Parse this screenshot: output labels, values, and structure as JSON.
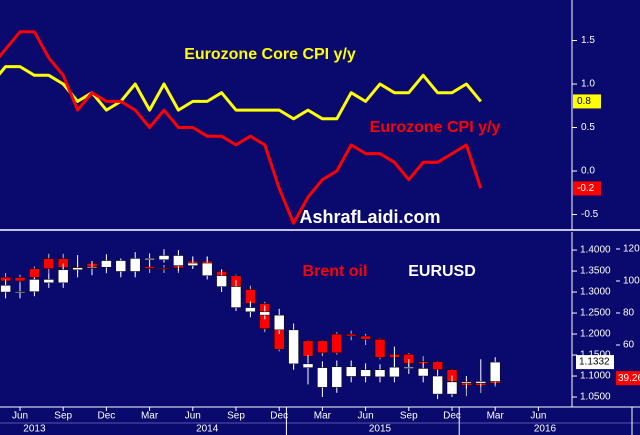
{
  "chart_data": [
    {
      "type": "line",
      "watermark": "AshrafLaidi.com",
      "series": [
        {
          "name": "Eurozone Core CPI y/y",
          "color": "#ffff00",
          "values": [
            1.0,
            1.2,
            1.2,
            1.1,
            1.1,
            1.0,
            0.8,
            0.9,
            0.7,
            0.8,
            1.0,
            0.7,
            1.0,
            0.7,
            0.8,
            0.8,
            0.9,
            0.7,
            0.7,
            0.7,
            0.7,
            0.6,
            0.7,
            0.6,
            0.6,
            0.9,
            0.8,
            1.0,
            0.9,
            0.9,
            1.1,
            0.9,
            0.9,
            1.0,
            0.8
          ]
        },
        {
          "name": "Eurozone CPI y/y",
          "color": "#ff0000",
          "values": [
            1.2,
            1.4,
            1.6,
            1.6,
            1.3,
            1.1,
            0.7,
            0.9,
            0.8,
            0.8,
            0.7,
            0.5,
            0.7,
            0.5,
            0.5,
            0.4,
            0.4,
            0.3,
            0.4,
            0.3,
            -0.2,
            -0.6,
            -0.3,
            -0.1,
            0.0,
            0.3,
            0.2,
            0.2,
            0.1,
            -0.1,
            0.1,
            0.1,
            0.2,
            0.3,
            -0.2
          ]
        }
      ],
      "ylim": [
        -0.655,
        1.966
      ],
      "yticks": [
        -0.5,
        {
          "value": 0,
          "label": "0.0"
        },
        0.5,
        {
          "value": 1,
          "label": "1.0"
        },
        1.5
      ]
    },
    {
      "type": "candlestick",
      "categories": [
        null,
        "Jun",
        null,
        null,
        "Sep",
        null,
        null,
        "Dec",
        null,
        null,
        "Mar",
        null,
        null,
        "Jun",
        null,
        null,
        "Sep",
        null,
        null,
        "Dec",
        null,
        null,
        "Mar",
        null,
        null,
        "Jun",
        null,
        null,
        "Sep",
        null,
        null,
        "Dec",
        null,
        null,
        "Mar",
        null,
        null,
        "Jun"
      ],
      "years": [
        "2013",
        "2014",
        "2015",
        "2016"
      ],
      "series": [
        {
          "name": "Brent oil",
          "color": "#ff0000",
          "axis": "y2",
          "open": [
            102.4,
            100,
            102.2,
            107.7,
            114,
            108.4,
            108.8,
            111,
            110.8,
            106.4,
            109,
            107.8,
            108.1,
            109.4,
            112.4,
            106,
            103.2,
            94.7,
            85.9,
            70.2,
            57.3,
            52.9,
            62.6,
            55.1,
            66.8,
            65.6,
            63.6,
            52.2,
            54.2,
            48.4,
            49.6,
            44.6,
            37.3,
            34.7,
            36,
            null,
            null,
            null
          ],
          "high": [
            105,
            104,
            109,
            117,
            117,
            112,
            112,
            113,
            112,
            110,
            111,
            110,
            110,
            114,
            115,
            107,
            104,
            97,
            87,
            72,
            59,
            63,
            63,
            68,
            69,
            67,
            64,
            54.5,
            55,
            53,
            50,
            45,
            38,
            36,
            41,
            null,
            null,
            null
          ],
          "low": [
            97,
            97,
            101,
            105,
            106,
            105,
            106,
            108,
            104,
            104,
            105,
            105,
            105,
            108,
            105,
            101,
            94,
            84,
            68,
            56,
            45,
            46,
            53,
            54,
            63,
            60,
            51,
            42,
            46,
            47,
            44,
            36,
            28,
            30,
            34,
            null,
            null,
            null
          ],
          "close": [
            100,
            102.2,
            107.7,
            114,
            108.4,
            108.8,
            111,
            110.8,
            106.4,
            109,
            107.8,
            108.1,
            109.4,
            112.4,
            106,
            103.2,
            94.7,
            85.9,
            70.2,
            57.3,
            52.9,
            62.6,
            55.1,
            66.8,
            65.6,
            63.6,
            52.2,
            54.2,
            48.4,
            49.6,
            44.6,
            37.3,
            34.7,
            36,
            39.26,
            null,
            null,
            null
          ]
        },
        {
          "name": "EURUSD",
          "color": "#ffffff",
          "open": [
            1.316,
            1.3,
            1.301,
            1.33,
            1.322,
            1.353,
            1.358,
            1.359,
            1.375,
            1.349,
            1.38,
            1.377,
            1.387,
            1.363,
            1.369,
            1.339,
            1.313,
            1.263,
            1.253,
            1.245,
            1.21,
            1.129,
            1.12,
            1.073,
            1.122,
            1.099,
            1.115,
            1.098,
            1.121,
            1.118,
            1.1,
            1.057,
            1.086,
            1.083,
            1.087,
            null,
            null,
            null
          ],
          "high": [
            1.331,
            1.321,
            1.335,
            1.345,
            1.368,
            1.388,
            1.374,
            1.39,
            1.38,
            1.395,
            1.392,
            1.402,
            1.4,
            1.385,
            1.385,
            1.354,
            1.328,
            1.278,
            1.268,
            1.26,
            1.225,
            1.15,
            1.135,
            1.137,
            1.137,
            1.13,
            1.128,
            1.17,
            1.14,
            1.133,
            1.115,
            1.101,
            1.1,
            1.14,
            1.145,
            null,
            null,
            null
          ],
          "low": [
            1.285,
            1.285,
            1.29,
            1.31,
            1.31,
            1.335,
            1.34,
            1.345,
            1.335,
            1.335,
            1.36,
            1.37,
            1.35,
            1.355,
            1.33,
            1.3,
            1.255,
            1.24,
            1.235,
            1.2,
            1.115,
            1.08,
            1.05,
            1.06,
            1.085,
            1.085,
            1.085,
            1.085,
            1.105,
            1.085,
            1.045,
            1.05,
            1.07,
            1.075,
            1.08,
            null,
            null,
            null
          ],
          "close": [
            1.3,
            1.301,
            1.33,
            1.322,
            1.353,
            1.358,
            1.359,
            1.375,
            1.349,
            1.38,
            1.377,
            1.387,
            1.363,
            1.369,
            1.339,
            1.313,
            1.263,
            1.253,
            1.245,
            1.21,
            1.129,
            1.12,
            1.073,
            1.122,
            1.099,
            1.115,
            1.098,
            1.121,
            1.118,
            1.1,
            1.057,
            1.086,
            1.083,
            1.087,
            1.1332,
            null,
            null,
            null
          ]
        }
      ],
      "ylim": [
        1.031,
        1.443
      ],
      "yticks": [
        {
          "value": 1.05,
          "label": "1.0500"
        },
        {
          "value": 1.1,
          "label": "1.1000"
        },
        {
          "value": 1.15,
          "label": "1.1500"
        },
        {
          "value": 1.2,
          "label": "1.2000"
        },
        {
          "value": 1.25,
          "label": "1.2500"
        },
        {
          "value": 1.3,
          "label": "1.3000"
        },
        {
          "value": 1.35,
          "label": "1.3500"
        },
        {
          "value": 1.4,
          "label": "1.4000"
        }
      ],
      "y2lim": [
        22.5,
        130.6
      ],
      "y2ticks": [
        40,
        60,
        80,
        100,
        120
      ]
    }
  ]
}
